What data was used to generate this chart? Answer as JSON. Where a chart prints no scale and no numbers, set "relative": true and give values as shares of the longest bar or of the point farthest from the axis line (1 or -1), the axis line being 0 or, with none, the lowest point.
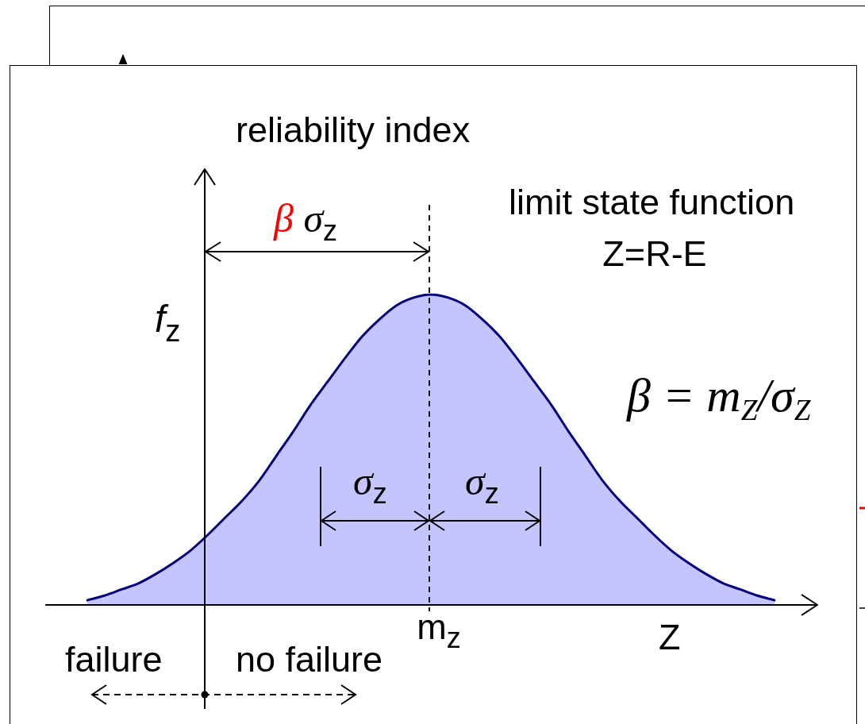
{
  "chart_data": {
    "type": "area",
    "relative": true,
    "title": "reliability index",
    "xlabel": "Z",
    "ylabel": "f$_{z}$",
    "categories": [
      null,
      null,
      null,
      null,
      null,
      null,
      null,
      null,
      null,
      null,
      null,
      null,
      null,
      null,
      null,
      null,
      null,
      null,
      null,
      null,
      null,
      null,
      null,
      null,
      null,
      null,
      null,
      null,
      null,
      null,
      null,
      null,
      null,
      null,
      null,
      null,
      null,
      null,
      null,
      null,
      null
    ],
    "values": [
      0.015,
      0.03,
      0.05,
      0.07,
      0.1,
      0.135,
      0.175,
      0.225,
      0.28,
      0.335,
      0.4,
      0.48,
      0.56,
      0.645,
      0.72,
      0.795,
      0.865,
      0.92,
      0.965,
      0.99,
      1,
      0.99,
      0.965,
      0.92,
      0.865,
      0.795,
      0.72,
      0.645,
      0.56,
      0.48,
      0.4,
      0.335,
      0.28,
      0.225,
      0.175,
      0.135,
      0.1,
      0.07,
      0.05,
      0.03,
      0.015
    ],
    "color": "#000080",
    "annotations": [
      "β σ$_{z}$",
      "limit state function",
      "Z=R-E",
      "β = m$_{Z}$/σ$_{Z}$",
      "σ$_{z}$",
      "σ$_{z}$",
      "m$_{z}$",
      "failure",
      "no failure"
    ]
  }
}
